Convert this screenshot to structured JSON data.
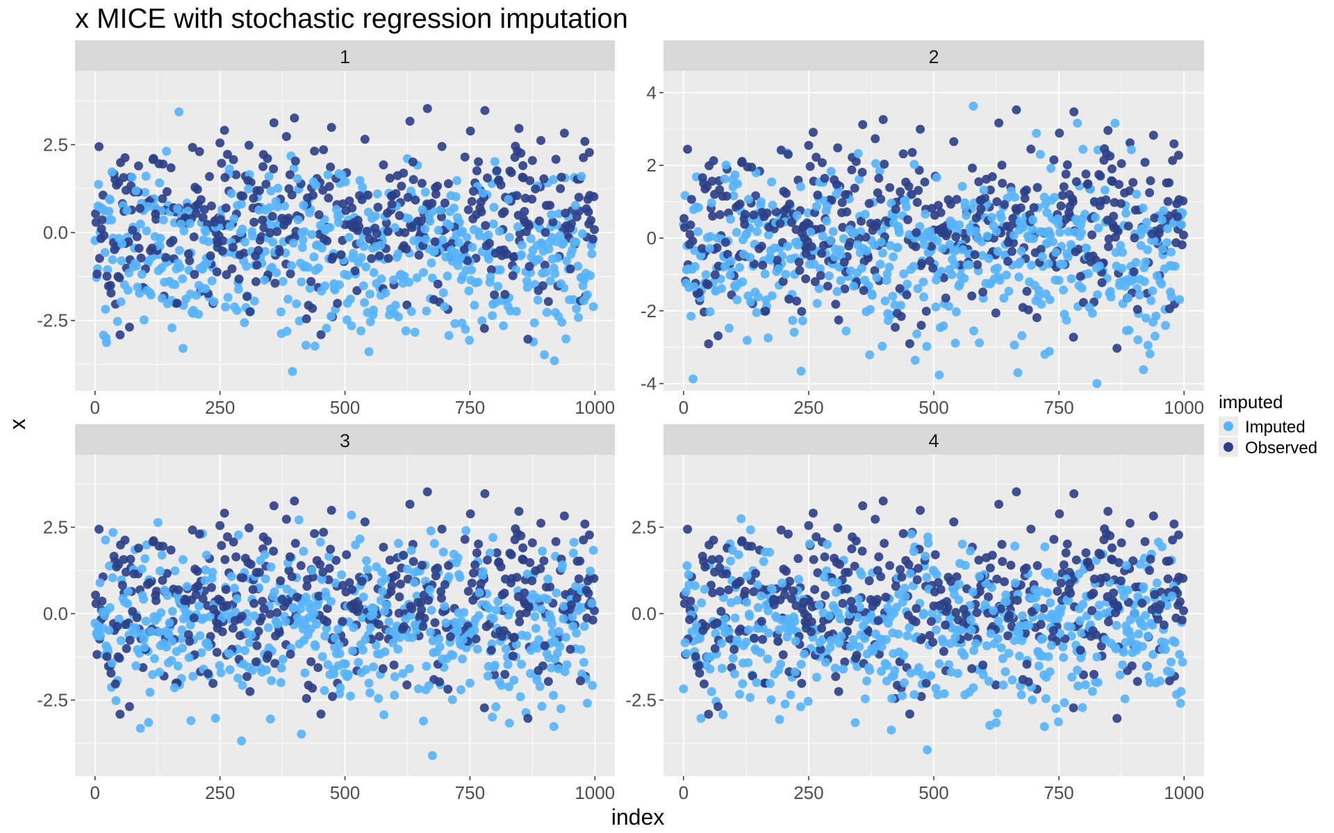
{
  "title": "x MICE with stochastic regression imputation",
  "legend": {
    "title": "imputed",
    "placement": "right",
    "entries": [
      {
        "label": "Imputed",
        "color": "#56b4f9"
      },
      {
        "label": "Observed",
        "color": "#2b3f87"
      }
    ]
  },
  "chart_data": {
    "type": "scatter",
    "facet_layout": "2x2",
    "xlabel": "index",
    "ylabel": "x",
    "x_ticks": [
      0,
      250,
      500,
      750,
      1000
    ],
    "x_tick_labels": [
      "0",
      "250",
      "500",
      "750",
      "1000"
    ],
    "xlim": [
      -40,
      1040
    ],
    "grid": true,
    "n_points_per_panel": 1000,
    "series": [
      {
        "name": "Imputed",
        "color": "#56b4f9"
      },
      {
        "name": "Observed",
        "color": "#2b3f87"
      }
    ],
    "panels": [
      {
        "label": "1",
        "ylim": [
          -4.5,
          4.6
        ],
        "y_ticks": [
          -2.5,
          0,
          2.5
        ],
        "y_tick_labels": [
          "-2.5",
          "0.0",
          "2.5"
        ]
      },
      {
        "label": "2",
        "ylim": [
          -4.2,
          4.6
        ],
        "y_ticks": [
          -4,
          -2,
          0,
          2,
          4
        ],
        "y_tick_labels": [
          "-4",
          "-2",
          "0",
          "2",
          "4"
        ]
      },
      {
        "label": "3",
        "ylim": [
          -4.7,
          4.6
        ],
        "y_ticks": [
          -2.5,
          0,
          2.5
        ],
        "y_tick_labels": [
          "-2.5",
          "0.0",
          "2.5"
        ]
      },
      {
        "label": "4",
        "ylim": [
          -4.7,
          4.6
        ],
        "y_ticks": [
          -2.5,
          0,
          2.5
        ],
        "y_tick_labels": [
          "-2.5",
          "0.0",
          "2.5"
        ]
      }
    ]
  }
}
